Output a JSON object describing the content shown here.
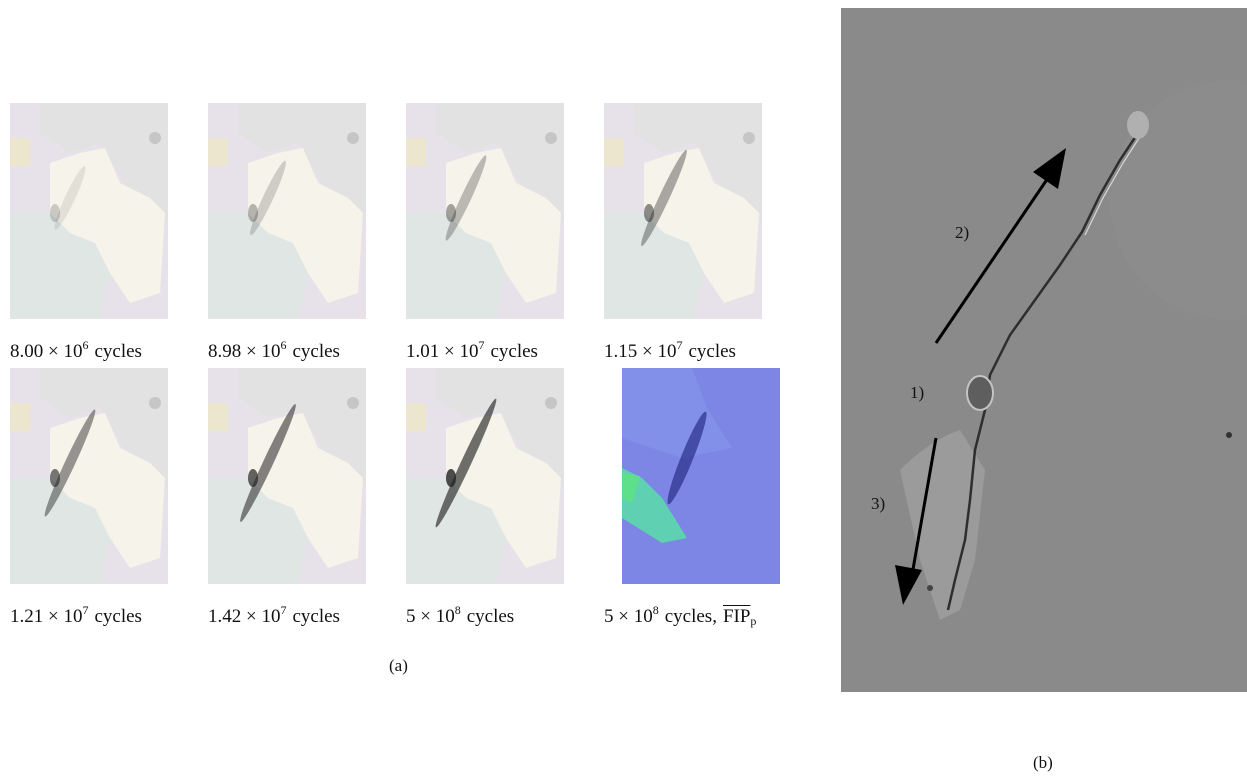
{
  "panel_a": {
    "captions": [
      [
        {
          "t": "8.00 × 10"
        },
        {
          "sup": "6"
        },
        {
          "t": "cycles"
        }
      ],
      [
        {
          "t": "8.98 × 10"
        },
        {
          "sup": "6"
        },
        {
          "t": "cycles"
        }
      ],
      [
        {
          "t": "1.01 × 10"
        },
        {
          "sup": "7"
        },
        {
          "t": "cycles"
        }
      ],
      [
        {
          "t": "1.15 × 10"
        },
        {
          "sup": "7"
        },
        {
          "t": "cycles"
        }
      ],
      [
        {
          "t": "1.21 × 10"
        },
        {
          "sup": "7"
        },
        {
          "t": "cycles"
        }
      ],
      [
        {
          "t": "1.42 × 10"
        },
        {
          "sup": "7"
        },
        {
          "t": "cycles"
        }
      ],
      [
        {
          "t": "5 × 10"
        },
        {
          "sup": "8"
        },
        {
          "t": "cycles"
        }
      ],
      [
        {
          "t": "5 × 10"
        },
        {
          "sup": "8"
        },
        {
          "t": "cycles,"
        },
        {
          "over": "FIP",
          "sub": "p"
        }
      ]
    ],
    "label": "(a)"
  },
  "panel_b": {
    "annotations": [
      "1)",
      "2)",
      "3)"
    ],
    "label": "(b)"
  }
}
